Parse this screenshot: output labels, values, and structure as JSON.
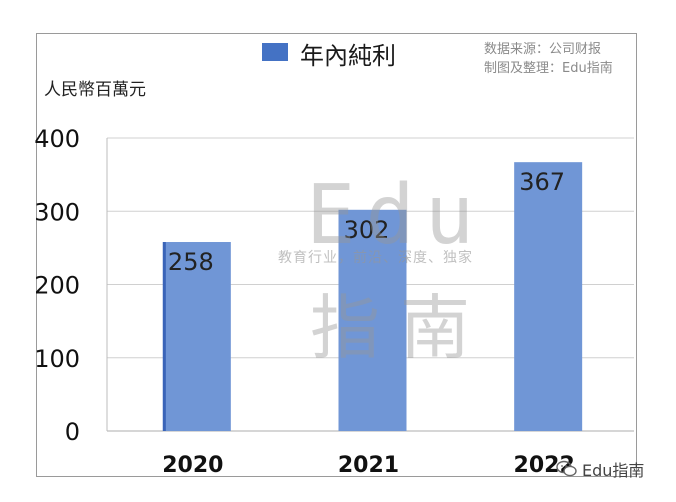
{
  "chart_data": {
    "type": "bar",
    "categories": [
      "2020",
      "2021",
      "2022"
    ],
    "values": [
      258,
      302,
      367
    ],
    "series": [
      {
        "name": "年內純利",
        "values": [
          258,
          302,
          367
        ]
      }
    ],
    "title": "",
    "ylabel": "人民幣百萬元",
    "ylim": [
      0,
      400
    ],
    "yticks": [
      0,
      100,
      200,
      300,
      400
    ],
    "grid": true,
    "legend": "top",
    "bar_color": "#7096d6"
  },
  "legend": {
    "label": "年內純利",
    "color": "#4472c4"
  },
  "unit_label": "人民幣百萬元",
  "source": {
    "line1": "数据来源：公司财报",
    "line2": "制图及整理：Edu指南"
  },
  "watermark": {
    "big": "Edu",
    "big2": "指南",
    "small": "教育行业，前沿、深度、独家"
  },
  "badge": {
    "text": "Edu指南",
    "icon": "wechat-icon"
  }
}
